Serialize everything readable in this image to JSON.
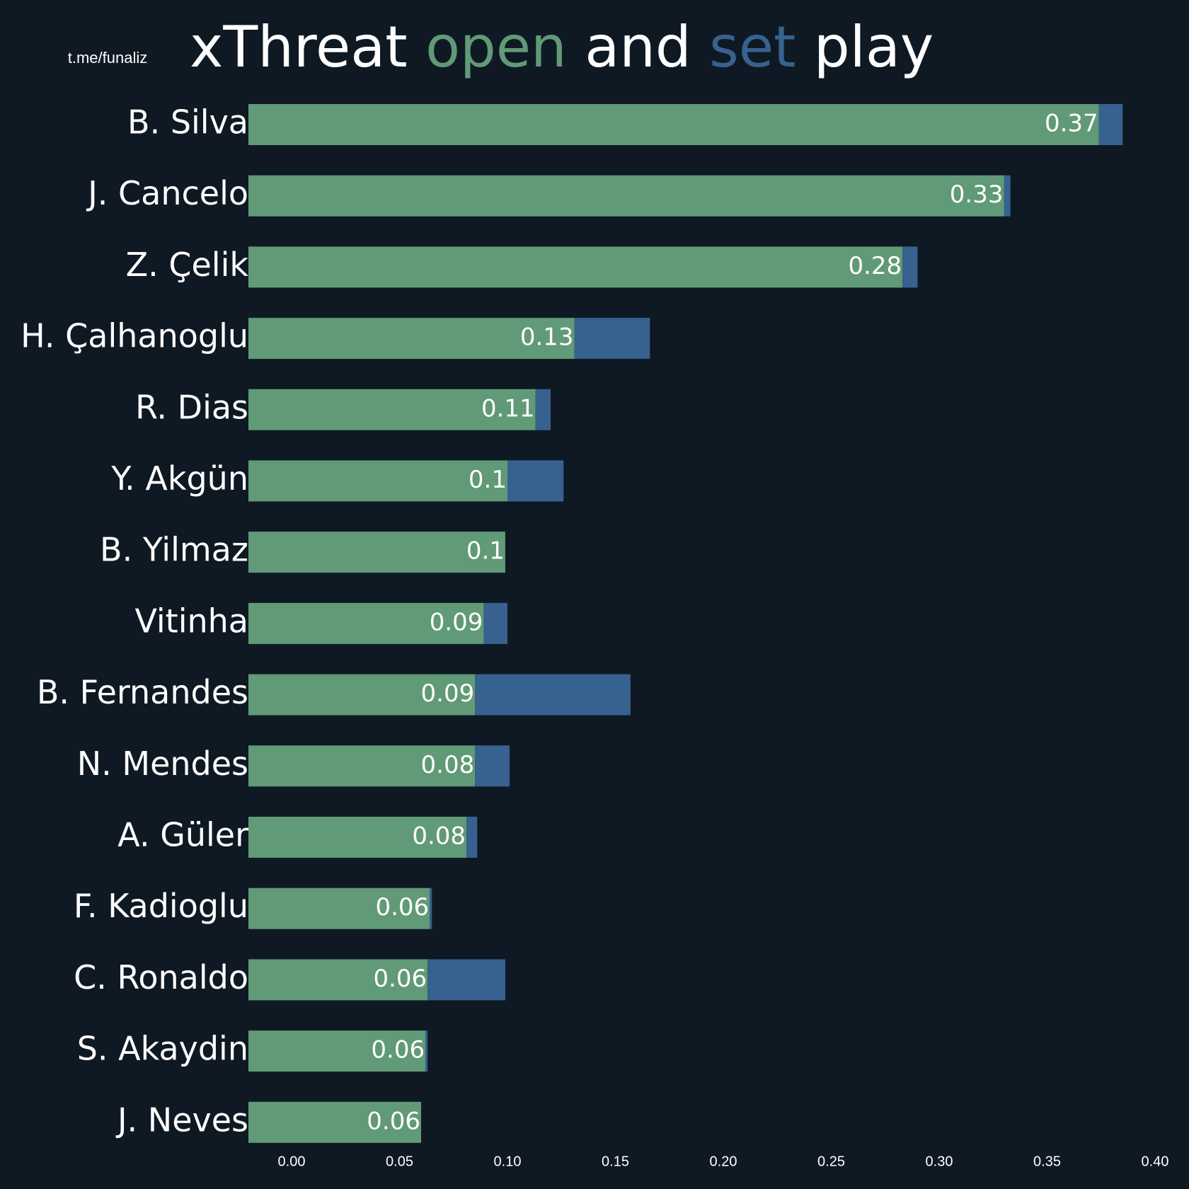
{
  "chart_data": {
    "type": "stacked-barh",
    "source": "t.me/funaliz",
    "title_parts": [
      "xThreat",
      "open",
      "and",
      "set",
      "play"
    ],
    "categories": [
      "B. Silva",
      "J. Cancelo",
      "Z. Çelik",
      "H. Çalhanoglu",
      "R. Dias",
      "Y. Akgün",
      "B. Yilmaz",
      "Vitinha",
      "B. Fernandes",
      "N. Mendes",
      "A. Güler",
      "F. Kadioglu",
      "C. Ronaldo",
      "S. Akaydin",
      "J. Neves"
    ],
    "series": [
      {
        "name": "open",
        "color": "#619a76",
        "values": [
          0.374,
          0.33,
          0.283,
          0.131,
          0.113,
          0.1,
          0.099,
          0.089,
          0.085,
          0.085,
          0.081,
          0.064,
          0.063,
          0.062,
          0.06
        ],
        "value_labels": [
          "0.37",
          "0.33",
          "0.28",
          "0.13",
          "0.11",
          "0.1",
          "0.1",
          "0.09",
          "0.09",
          "0.08",
          "0.08",
          "0.06",
          "0.06",
          "0.06",
          "0.06"
        ]
      },
      {
        "name": "set",
        "color": "#37618e",
        "values": [
          0.011,
          0.003,
          0.007,
          0.035,
          0.007,
          0.026,
          0,
          0.011,
          0.072,
          0.016,
          0.005,
          0.001,
          0.036,
          0.001,
          0
        ]
      }
    ],
    "xlim": [
      -0.02,
      0.4
    ],
    "xticks": [
      {
        "value": 0,
        "label": "0.00"
      },
      {
        "value": 0.05,
        "label": "0.05"
      },
      {
        "value": 0.1,
        "label": "0.10"
      },
      {
        "value": 0.15,
        "label": "0.15"
      },
      {
        "value": 0.2,
        "label": "0.20"
      },
      {
        "value": 0.25,
        "label": "0.25"
      },
      {
        "value": 0.3,
        "label": "0.30"
      },
      {
        "value": 0.35,
        "label": "0.35"
      },
      {
        "value": 0.4,
        "label": "0.40"
      }
    ],
    "background": "#0f1923"
  }
}
